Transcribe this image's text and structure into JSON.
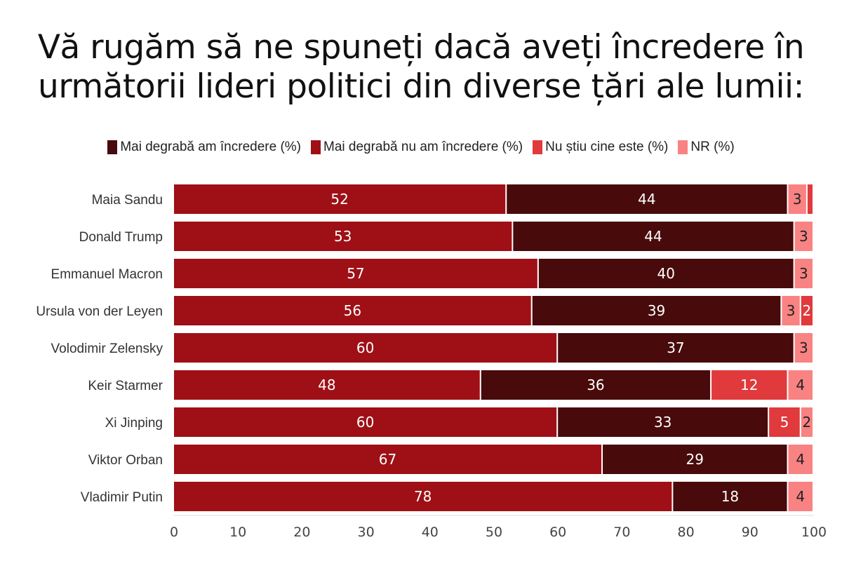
{
  "chart_data": {
    "type": "bar",
    "orientation": "horizontal",
    "stacked": true,
    "title": "Vă rugăm să ne spuneți dacă aveți încredere în următorii lideri politici din diverse țări ale lumii:",
    "xlim": [
      0,
      100
    ],
    "xticks": [
      0,
      10,
      20,
      30,
      40,
      50,
      60,
      70,
      80,
      90,
      100
    ],
    "legend_position": "top",
    "categories": [
      "Maia Sandu",
      "Donald Trump",
      "Emmanuel Macron",
      "Ursula von der Leyen",
      "Volodimir Zelensky",
      "Keir Starmer",
      "Xi Jinping",
      "Viktor Orban",
      "Vladimir Putin"
    ],
    "series": [
      {
        "name": "Mai degrabă am încredere (%)",
        "color": "#480a0b",
        "values": [
          44,
          44,
          40,
          39,
          37,
          36,
          33,
          29,
          18
        ]
      },
      {
        "name": "Mai degrabă nu am încredere (%)",
        "color": "#9e1016",
        "values": [
          52,
          53,
          57,
          56,
          60,
          48,
          60,
          67,
          78
        ]
      },
      {
        "name": "Nu știu cine este (%)",
        "color": "#e03a3c",
        "values": [
          1,
          null,
          null,
          2,
          null,
          12,
          5,
          null,
          null
        ]
      },
      {
        "name": "NR (%)",
        "color": "#f98282",
        "values": [
          3,
          3,
          3,
          3,
          3,
          4,
          2,
          4,
          4
        ]
      }
    ]
  }
}
